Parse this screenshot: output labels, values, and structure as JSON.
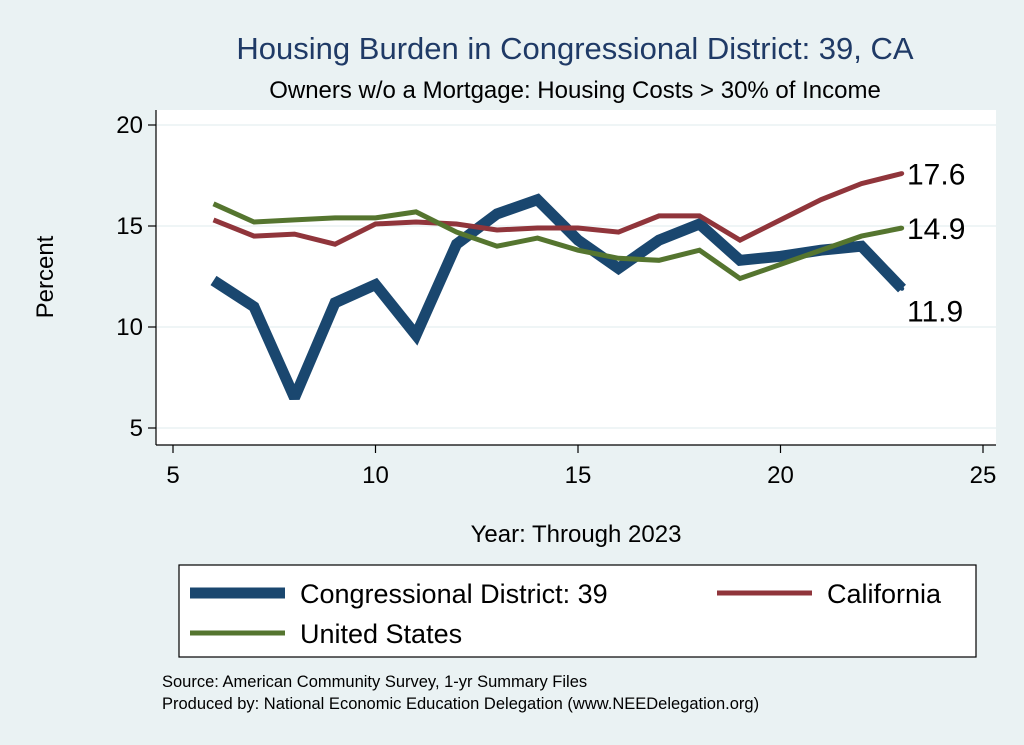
{
  "chart_data": {
    "type": "line",
    "title": "Housing Burden in Congressional District:  39, CA",
    "subtitle": "Owners w/o a Mortgage: Housing Costs > 30% of Income",
    "xlabel": "Year: Through 2023",
    "ylabel": "Percent",
    "xlim": [
      5,
      25
    ],
    "ylim": [
      5,
      20
    ],
    "xticks": [
      5,
      10,
      15,
      20,
      25
    ],
    "yticks": [
      5,
      10,
      15,
      20
    ],
    "grid": true,
    "series": [
      {
        "name": "Congressional District:  39",
        "color": "#1a476f",
        "x": [
          6,
          7,
          8,
          9,
          10,
          11,
          12,
          13,
          14,
          15,
          16,
          17,
          18,
          19,
          20,
          21,
          22,
          23
        ],
        "values": [
          12.3,
          11.0,
          6.5,
          11.2,
          12.1,
          9.6,
          14.1,
          15.6,
          16.3,
          14.3,
          12.9,
          14.3,
          15.1,
          13.3,
          13.5,
          13.8,
          14.0,
          11.9
        ],
        "end_label": "11.9"
      },
      {
        "name": "California",
        "color": "#90353b",
        "x": [
          6,
          7,
          8,
          9,
          10,
          11,
          12,
          13,
          14,
          15,
          16,
          17,
          18,
          19,
          20,
          21,
          22,
          23
        ],
        "values": [
          15.3,
          14.5,
          14.6,
          14.1,
          15.1,
          15.2,
          15.1,
          14.8,
          14.9,
          14.9,
          14.7,
          15.5,
          15.5,
          14.3,
          15.3,
          16.3,
          17.1,
          17.6
        ],
        "end_label": "17.6"
      },
      {
        "name": "United States",
        "color": "#55752f",
        "x": [
          6,
          7,
          8,
          9,
          10,
          11,
          12,
          13,
          14,
          15,
          16,
          17,
          18,
          19,
          20,
          21,
          22,
          23
        ],
        "values": [
          16.1,
          15.2,
          15.3,
          15.4,
          15.4,
          15.7,
          14.7,
          14.0,
          14.4,
          13.8,
          13.4,
          13.3,
          13.8,
          12.4,
          13.1,
          13.8,
          14.5,
          14.9
        ],
        "end_label": "14.9"
      }
    ],
    "legend": {
      "position": "bottom",
      "items": [
        "Congressional District:  39",
        "California",
        "United States"
      ]
    },
    "notes": [
      "Source: American Community Survey, 1-yr Summary Files",
      "Produced by: National Economic Education Delegation (www.NEEDelegation.org)"
    ]
  }
}
